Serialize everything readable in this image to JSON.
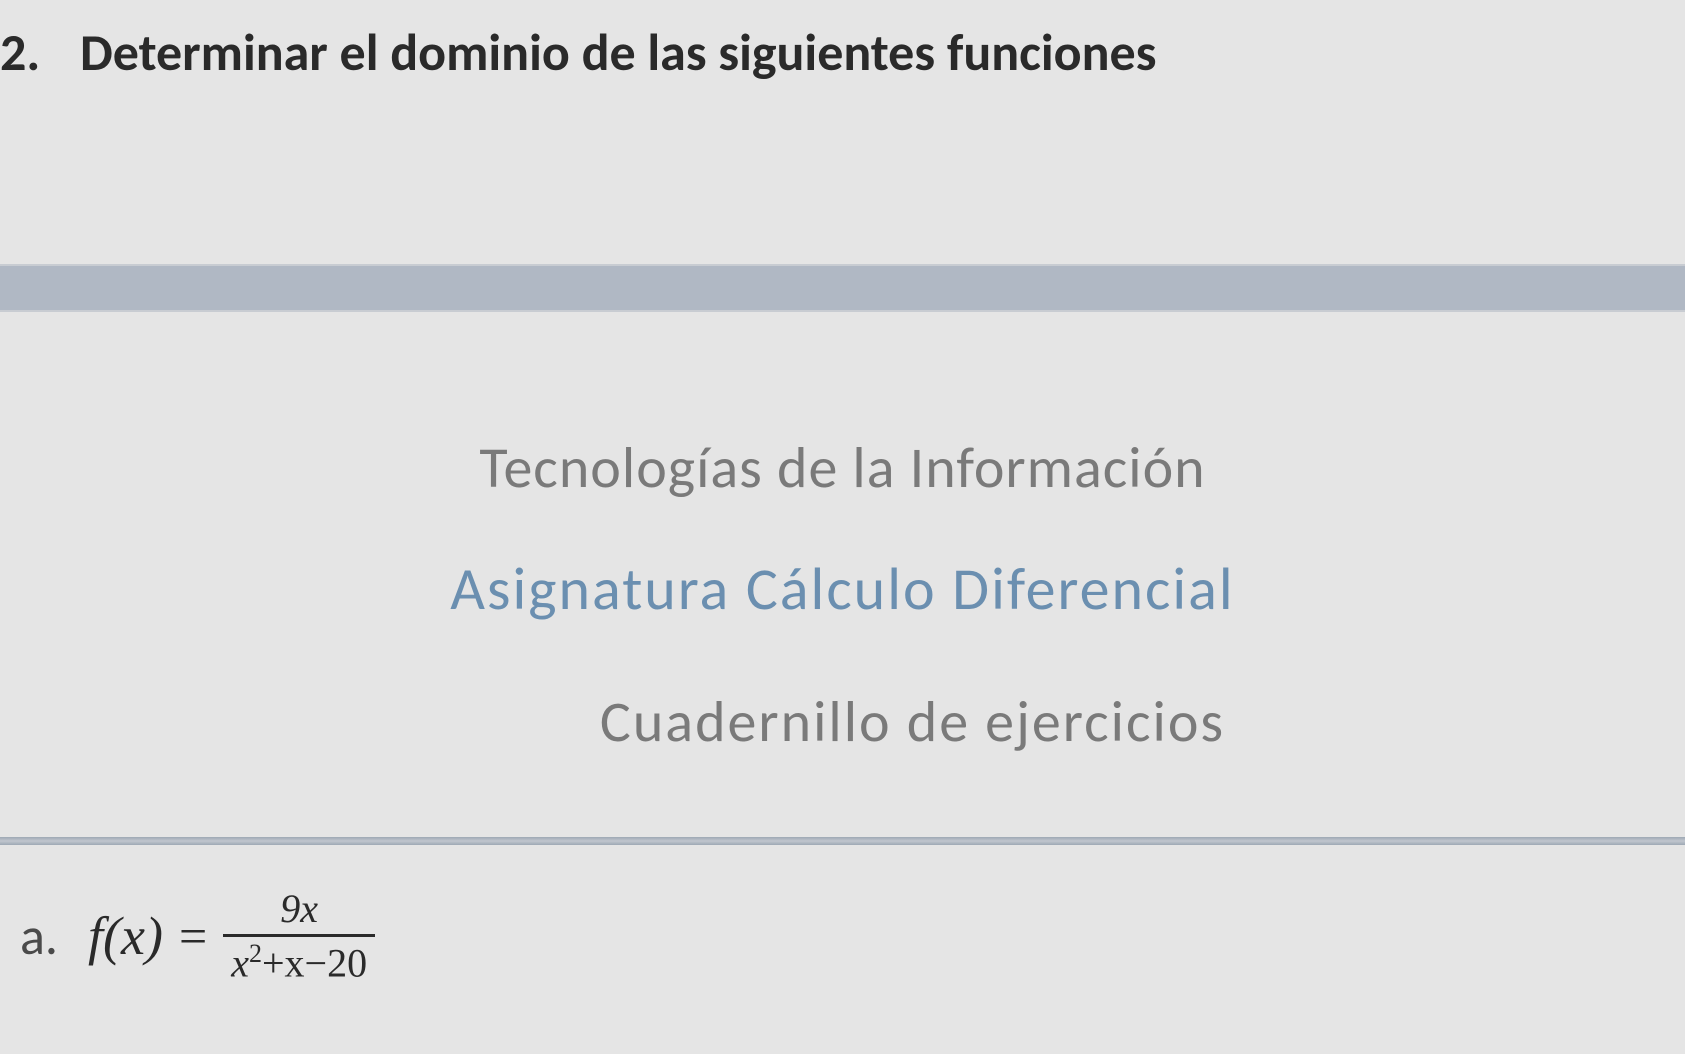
{
  "question": {
    "number": "2.",
    "text": "Determinar el dominio de las siguientes funciones"
  },
  "header": {
    "program": "Tecnologías de la Información",
    "subject": "Asignatura Cálculo Diferencial",
    "booklet": "Cuadernillo de ejercicios"
  },
  "subquestion": {
    "label": "a.",
    "fn_left": "f(x)",
    "equals": "=",
    "numerator": "9x",
    "denom_var": "x",
    "denom_exp": "2",
    "denom_rest": "+x−20"
  },
  "style": {
    "background_color": "#e5e5e5",
    "divider_color": "#b0b8c4",
    "heading_color": "#2a2a2a",
    "program_color": "#7a7a7a",
    "subject_color": "#6b8fb0",
    "booklet_color": "#7a7a7a",
    "math_color": "#2a2a2a",
    "heading_fontsize": 52,
    "title_fontsize": 58,
    "subject_fontsize": 60,
    "math_fontsize": 54,
    "frac_fontsize": 40
  }
}
